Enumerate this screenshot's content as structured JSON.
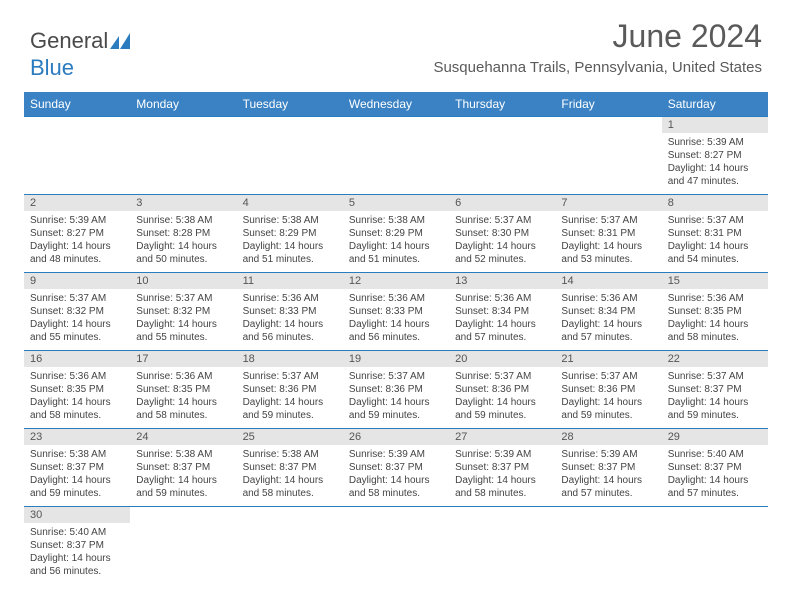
{
  "logo": {
    "text1": "General",
    "text2": "Blue"
  },
  "title": "June 2024",
  "subtitle": "Susquehanna Trails, Pennsylvania, United States",
  "colors": {
    "header_bg": "#3a82c4",
    "border": "#2b7bbf",
    "daynum_bg": "#e5e5e5",
    "text": "#444444"
  },
  "weekdays": [
    "Sunday",
    "Monday",
    "Tuesday",
    "Wednesday",
    "Thursday",
    "Friday",
    "Saturday"
  ],
  "weeks": [
    [
      null,
      null,
      null,
      null,
      null,
      null,
      {
        "n": "1",
        "sr": "5:39 AM",
        "ss": "8:27 PM",
        "dl": "14 hours and 47 minutes."
      }
    ],
    [
      {
        "n": "2",
        "sr": "5:39 AM",
        "ss": "8:27 PM",
        "dl": "14 hours and 48 minutes."
      },
      {
        "n": "3",
        "sr": "5:38 AM",
        "ss": "8:28 PM",
        "dl": "14 hours and 50 minutes."
      },
      {
        "n": "4",
        "sr": "5:38 AM",
        "ss": "8:29 PM",
        "dl": "14 hours and 51 minutes."
      },
      {
        "n": "5",
        "sr": "5:38 AM",
        "ss": "8:29 PM",
        "dl": "14 hours and 51 minutes."
      },
      {
        "n": "6",
        "sr": "5:37 AM",
        "ss": "8:30 PM",
        "dl": "14 hours and 52 minutes."
      },
      {
        "n": "7",
        "sr": "5:37 AM",
        "ss": "8:31 PM",
        "dl": "14 hours and 53 minutes."
      },
      {
        "n": "8",
        "sr": "5:37 AM",
        "ss": "8:31 PM",
        "dl": "14 hours and 54 minutes."
      }
    ],
    [
      {
        "n": "9",
        "sr": "5:37 AM",
        "ss": "8:32 PM",
        "dl": "14 hours and 55 minutes."
      },
      {
        "n": "10",
        "sr": "5:37 AM",
        "ss": "8:32 PM",
        "dl": "14 hours and 55 minutes."
      },
      {
        "n": "11",
        "sr": "5:36 AM",
        "ss": "8:33 PM",
        "dl": "14 hours and 56 minutes."
      },
      {
        "n": "12",
        "sr": "5:36 AM",
        "ss": "8:33 PM",
        "dl": "14 hours and 56 minutes."
      },
      {
        "n": "13",
        "sr": "5:36 AM",
        "ss": "8:34 PM",
        "dl": "14 hours and 57 minutes."
      },
      {
        "n": "14",
        "sr": "5:36 AM",
        "ss": "8:34 PM",
        "dl": "14 hours and 57 minutes."
      },
      {
        "n": "15",
        "sr": "5:36 AM",
        "ss": "8:35 PM",
        "dl": "14 hours and 58 minutes."
      }
    ],
    [
      {
        "n": "16",
        "sr": "5:36 AM",
        "ss": "8:35 PM",
        "dl": "14 hours and 58 minutes."
      },
      {
        "n": "17",
        "sr": "5:36 AM",
        "ss": "8:35 PM",
        "dl": "14 hours and 58 minutes."
      },
      {
        "n": "18",
        "sr": "5:37 AM",
        "ss": "8:36 PM",
        "dl": "14 hours and 59 minutes."
      },
      {
        "n": "19",
        "sr": "5:37 AM",
        "ss": "8:36 PM",
        "dl": "14 hours and 59 minutes."
      },
      {
        "n": "20",
        "sr": "5:37 AM",
        "ss": "8:36 PM",
        "dl": "14 hours and 59 minutes."
      },
      {
        "n": "21",
        "sr": "5:37 AM",
        "ss": "8:36 PM",
        "dl": "14 hours and 59 minutes."
      },
      {
        "n": "22",
        "sr": "5:37 AM",
        "ss": "8:37 PM",
        "dl": "14 hours and 59 minutes."
      }
    ],
    [
      {
        "n": "23",
        "sr": "5:38 AM",
        "ss": "8:37 PM",
        "dl": "14 hours and 59 minutes."
      },
      {
        "n": "24",
        "sr": "5:38 AM",
        "ss": "8:37 PM",
        "dl": "14 hours and 59 minutes."
      },
      {
        "n": "25",
        "sr": "5:38 AM",
        "ss": "8:37 PM",
        "dl": "14 hours and 58 minutes."
      },
      {
        "n": "26",
        "sr": "5:39 AM",
        "ss": "8:37 PM",
        "dl": "14 hours and 58 minutes."
      },
      {
        "n": "27",
        "sr": "5:39 AM",
        "ss": "8:37 PM",
        "dl": "14 hours and 58 minutes."
      },
      {
        "n": "28",
        "sr": "5:39 AM",
        "ss": "8:37 PM",
        "dl": "14 hours and 57 minutes."
      },
      {
        "n": "29",
        "sr": "5:40 AM",
        "ss": "8:37 PM",
        "dl": "14 hours and 57 minutes."
      }
    ],
    [
      {
        "n": "30",
        "sr": "5:40 AM",
        "ss": "8:37 PM",
        "dl": "14 hours and 56 minutes."
      },
      null,
      null,
      null,
      null,
      null,
      null
    ]
  ],
  "labels": {
    "sunrise": "Sunrise:",
    "sunset": "Sunset:",
    "daylight": "Daylight:"
  }
}
